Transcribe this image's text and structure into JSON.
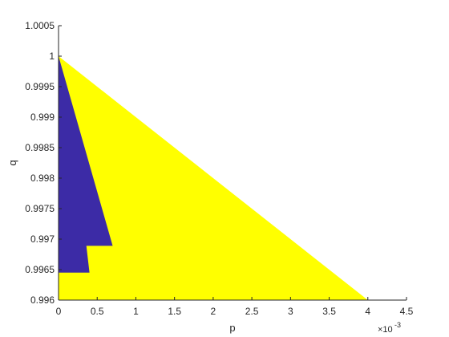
{
  "chart_data": {
    "type": "area",
    "xlabel": "p",
    "ylabel": "q",
    "x_exponent_label": {
      "base": "×10",
      "exp": "-3"
    },
    "xlim": [
      0,
      0.0045
    ],
    "ylim": [
      0.996,
      1.0005
    ],
    "x_ticks": [
      0,
      0.0005,
      0.001,
      0.0015,
      0.002,
      0.0025,
      0.003,
      0.0035,
      0.004,
      0.0045
    ],
    "x_tick_labels": [
      "0",
      "0.5",
      "1",
      "1.5",
      "2",
      "2.5",
      "3",
      "3.5",
      "4",
      "4.5"
    ],
    "y_ticks": [
      0.996,
      0.9965,
      0.997,
      0.9975,
      0.998,
      0.9985,
      0.999,
      0.9995,
      1,
      1.0005
    ],
    "y_tick_labels": [
      "0.996",
      "0.9965",
      "0.997",
      "0.9975",
      "0.998",
      "0.9985",
      "0.999",
      "0.9995",
      "1",
      "1.0005"
    ],
    "grid": false,
    "regions": [
      {
        "color": "#FFFF00",
        "points": [
          [
            0,
            1
          ],
          [
            0.004,
            0.996
          ],
          [
            0,
            0.996
          ]
        ]
      },
      {
        "color": "#3C2BA6",
        "points": [
          [
            0,
            1
          ],
          [
            0.0007,
            0.99689
          ],
          [
            0.00036,
            0.99689
          ],
          [
            0.0004,
            0.99645
          ],
          [
            0,
            0.99645
          ]
        ]
      }
    ]
  }
}
